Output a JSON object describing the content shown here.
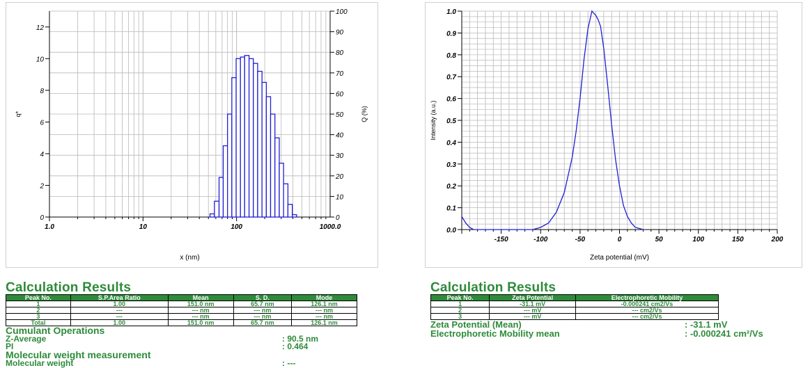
{
  "chart_data": [
    {
      "type": "bar",
      "xlabel": "x (nm)",
      "ylabel_left": "q*",
      "ylabel_right": "Q (%)",
      "x_scale": "log",
      "xlim": [
        1.0,
        1000.0
      ],
      "ylim_left": [
        0,
        13
      ],
      "ylim_right": [
        0,
        100
      ],
      "x_ticks": [
        "1.0",
        "10",
        "100",
        "1000.0"
      ],
      "y_ticks_left": [
        "0",
        "2",
        "4",
        "6",
        "8",
        "10",
        "12"
      ],
      "y_ticks_right": [
        "0",
        "10",
        "20",
        "30",
        "40",
        "50",
        "60",
        "70",
        "80",
        "90",
        "100"
      ],
      "grid": true,
      "series": [
        {
          "bins_nm": [
            [
              52,
              58
            ],
            [
              58,
              65
            ],
            [
              65,
              72
            ],
            [
              72,
              80
            ],
            [
              80,
              89
            ],
            [
              89,
              99
            ],
            [
              99,
              110
            ],
            [
              110,
              122
            ],
            [
              122,
              136
            ],
            [
              136,
              151
            ],
            [
              151,
              168
            ],
            [
              168,
              187
            ],
            [
              187,
              208
            ],
            [
              208,
              231
            ],
            [
              231,
              257
            ],
            [
              257,
              286
            ],
            [
              286,
              318
            ],
            [
              318,
              354
            ],
            [
              354,
              394
            ],
            [
              394,
              438
            ]
          ],
          "values": [
            0.2,
            1.0,
            2.5,
            4.5,
            6.5,
            8.8,
            10.0,
            10.1,
            10.2,
            10.0,
            9.7,
            9.2,
            8.5,
            7.6,
            6.5,
            5.0,
            3.4,
            2.1,
            0.8,
            0.15
          ]
        }
      ]
    },
    {
      "type": "line",
      "xlabel": "Zeta potential (mV)",
      "ylabel": "Intensity (a.u.)",
      "xlim": [
        -200,
        200
      ],
      "ylim": [
        0,
        1.0
      ],
      "x_ticks": [
        "-150",
        "-100",
        "-50",
        "0",
        "50",
        "100",
        "150",
        "200"
      ],
      "y_ticks": [
        "0.0",
        "0.1",
        "0.2",
        "0.3",
        "0.4",
        "0.5",
        "0.6",
        "0.7",
        "0.8",
        "0.9",
        "1.0"
      ],
      "grid": true,
      "series": [
        {
          "x": [
            -200,
            -195,
            -190,
            -185,
            -180,
            -110,
            -100,
            -90,
            -80,
            -70,
            -60,
            -55,
            -50,
            -45,
            -40,
            -35,
            -30,
            -27,
            -24,
            -20,
            -15,
            -10,
            -5,
            0,
            5,
            10,
            15,
            20,
            25,
            30
          ],
          "y": [
            0.06,
            0.03,
            0.01,
            0.0,
            0.0,
            0.0,
            0.01,
            0.03,
            0.08,
            0.17,
            0.33,
            0.45,
            0.6,
            0.78,
            0.92,
            1.0,
            0.98,
            0.96,
            0.93,
            0.83,
            0.66,
            0.48,
            0.32,
            0.2,
            0.11,
            0.06,
            0.03,
            0.01,
            0.005,
            0.0
          ]
        }
      ]
    }
  ],
  "left_results": {
    "title": "Calculation Results",
    "headers": [
      "Peak No.",
      "S.P.Area Ratio",
      "Mean",
      "S. D.",
      "Mode"
    ],
    "rows": [
      [
        "1",
        "1.00",
        "151.0 nm",
        "65.7 nm",
        "126.1 nm"
      ],
      [
        "2",
        "---",
        "--- nm",
        "--- nm",
        "--- nm"
      ],
      [
        "3",
        "---",
        "--- nm",
        "--- nm",
        "--- nm"
      ],
      [
        "Total",
        "1.00",
        "151.0 nm",
        "65.7 nm",
        "126.1 nm"
      ]
    ],
    "cumulant_title": "Cumulant Operations",
    "z_average_label": "Z-Average",
    "z_average_value": ":   90.5  nm",
    "pi_label": "PI",
    "pi_value": ":   0.464",
    "mw_measurement_label": "Molecular weight measurement",
    "mw_label": "Molecular weight",
    "mw_value": ":   ---"
  },
  "right_results": {
    "title": "Calculation Results",
    "headers": [
      "Peak No.",
      "Zeta Potential",
      "Electrophoretic Mobility"
    ],
    "rows": [
      [
        "1",
        "-31.1 mV",
        "-0.000241 cm2/Vs"
      ],
      [
        "2",
        "--- mV",
        "--- cm2/Vs"
      ],
      [
        "3",
        "--- mV",
        "--- cm2/Vs"
      ]
    ],
    "zeta_mean_label": "Zeta Potential (Mean)",
    "zeta_mean_value": ":   -31.1  mV",
    "mobility_label": "Electrophoretic Mobility mean",
    "mobility_value": ":   -0.000241  cm²/Vs"
  },
  "colors": {
    "series": "#1f1fd6",
    "grid": "#b8b8b8",
    "results_green": "#2e8b3a"
  }
}
